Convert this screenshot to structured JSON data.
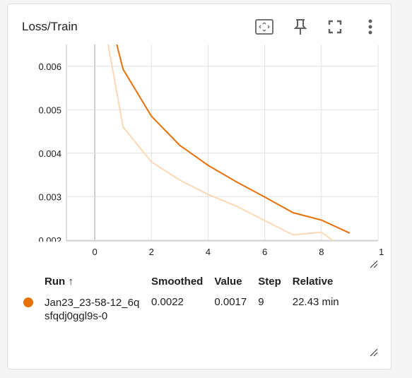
{
  "card": {
    "title": "Loss/Train",
    "tools": [
      "fit-domain-icon",
      "pin-icon",
      "fullscreen-icon",
      "more-vert-icon"
    ]
  },
  "chart_data": {
    "type": "line",
    "title": "Loss/Train",
    "xlabel": "",
    "ylabel": "",
    "xlim": [
      -1,
      10
    ],
    "ylim": [
      0.00198,
      0.0065
    ],
    "x_ticks": [
      "0",
      "2",
      "4",
      "6",
      "8",
      "1"
    ],
    "y_ticks": [
      "0.006",
      "0.005",
      "0.004",
      "0.003",
      "0.002"
    ],
    "grid": true,
    "series": [
      {
        "role": "raw",
        "color": "#fdd9b5",
        "x": [
          0,
          1,
          2,
          3,
          4,
          5,
          6,
          7,
          8,
          9
        ],
        "values": [
          0.0082,
          0.0046,
          0.0038,
          0.00338,
          0.00305,
          0.00278,
          0.00245,
          0.00212,
          0.00218,
          0.0017
        ]
      },
      {
        "role": "smoothed",
        "color": "#e8710a",
        "x": [
          0,
          1,
          2,
          3,
          4,
          5,
          6,
          7,
          8,
          9
        ],
        "values": [
          0.0085,
          0.00593,
          0.00485,
          0.00418,
          0.00372,
          0.00334,
          0.00299,
          0.00263,
          0.00246,
          0.00216
        ]
      }
    ]
  },
  "table": {
    "headers": {
      "run": "Run ↑",
      "smoothed": "Smoothed",
      "value": "Value",
      "step": "Step",
      "relative": "Relative"
    },
    "rows": [
      {
        "color": "#e8710a",
        "run": "Jan23_23-58-12_6qsfqdj0ggl9s-0",
        "smoothed": "0.0022",
        "value": "0.0017",
        "step": "9",
        "relative": "22.43 min"
      }
    ]
  }
}
